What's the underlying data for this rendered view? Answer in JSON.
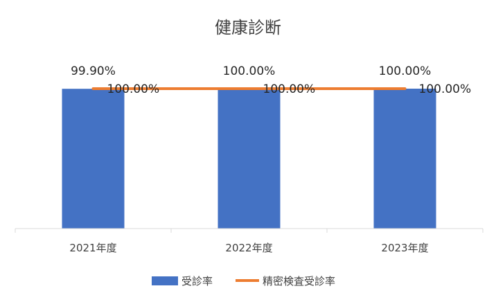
{
  "chart_data": {
    "type": "bar",
    "title": "健康診断",
    "categories": [
      "2021年度",
      "2022年度",
      "2023年度"
    ],
    "series": [
      {
        "name": "受診率",
        "type": "bar",
        "color": "#4472C4",
        "values": [
          99.9,
          100.0,
          100.0
        ],
        "labels": [
          "99.90%",
          "100.00%",
          "100.00%"
        ]
      },
      {
        "name": "精密検査受診率",
        "type": "line",
        "color": "#ED7D31",
        "values": [
          100.0,
          100.0,
          100.0
        ],
        "labels": [
          "100.00%",
          "100.00%",
          "100.00%"
        ]
      }
    ],
    "ylim": [
      0,
      100
    ],
    "grid": false,
    "legend": "bottom"
  }
}
